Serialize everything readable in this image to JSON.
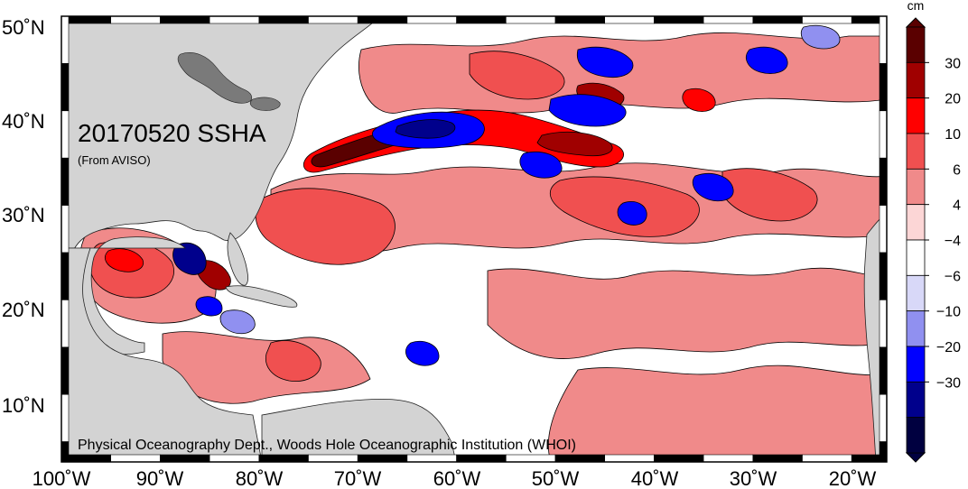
{
  "map": {
    "title": "20170520 SSHA",
    "subtitle": "(From AVISO)",
    "credit": "Physical Oceanography Dept., Woods Hole Oceanographic Institution (WHOI)",
    "lon_labels": [
      "100˚W",
      "90˚W",
      "80˚W",
      "70˚W",
      "60˚W",
      "50˚W",
      "40˚W",
      "30˚W",
      "20˚W"
    ],
    "lat_labels": [
      "50˚N",
      "40˚N",
      "30˚N",
      "20˚N",
      "10˚N"
    ],
    "land_color": "#d3d3d3",
    "ocean_base_color": "#ffffff"
  },
  "colorbar": {
    "unit": "cm",
    "tick_labels": [
      "30",
      "20",
      "10",
      "6",
      "4",
      "−4",
      "−6",
      "−10",
      "−20",
      "−30"
    ],
    "colors_top_to_bottom": [
      "#5a0000",
      "#a00000",
      "#ff0000",
      "#f05050",
      "#f08a8a",
      "#fcd6d6",
      "#ffffff",
      "#d8d8f8",
      "#9090f0",
      "#0000ff",
      "#00008c",
      "#000040"
    ]
  }
}
